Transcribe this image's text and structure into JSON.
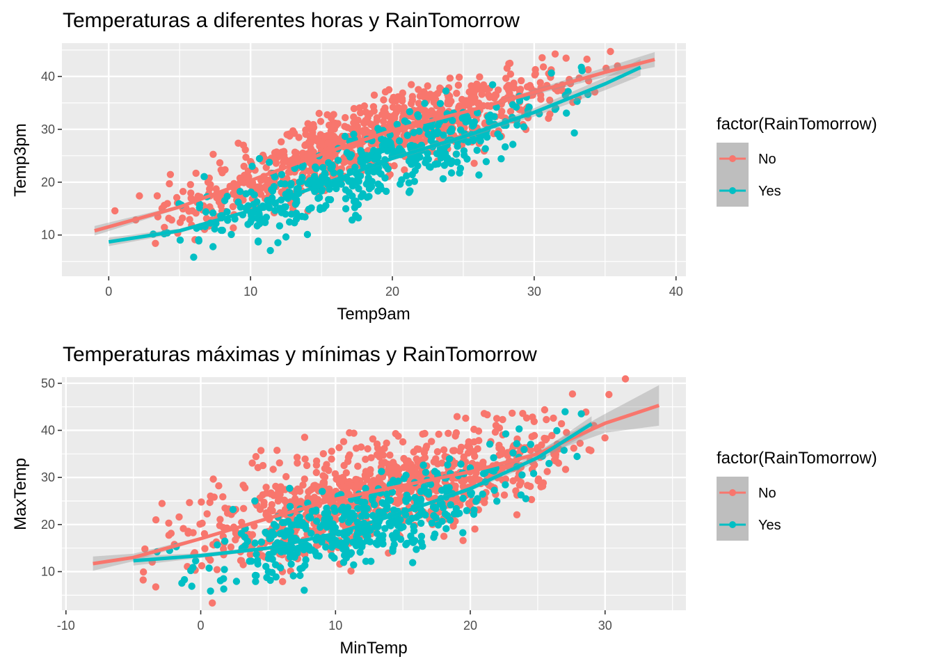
{
  "chart_data": [
    {
      "type": "scatter",
      "title": "Temperaturas a diferentes horas y RainTomorrow",
      "xlabel": "Temp9am",
      "ylabel": "Temp3pm",
      "xlim": [
        -3.3,
        40.7
      ],
      "ylim": [
        2.2,
        46.3
      ],
      "xticks": [
        0,
        10,
        20,
        30,
        40
      ],
      "yticks": [
        10,
        20,
        30,
        40
      ],
      "xtick_labels": [
        "0",
        "10",
        "20",
        "30",
        "40"
      ],
      "ytick_labels": [
        "10",
        "20",
        "30",
        "40"
      ],
      "grid": true,
      "legend": {
        "title": "factor(RainTomorrow)",
        "placement": "right",
        "entries": [
          {
            "label": "No",
            "color": "#F8766D"
          },
          {
            "label": "Yes",
            "color": "#00BFC4"
          }
        ]
      },
      "series": [
        {
          "name": "No",
          "color": "#F8766D",
          "points_spec": {
            "x_range": [
              -1.2,
              38.6
            ],
            "slope": 1.02,
            "intercept": 10.5,
            "spread": 3.3,
            "count": 900
          },
          "smooth": {
            "x": [
              -1,
              5,
              10,
              15,
              20,
              25,
              30,
              35,
              38.5
            ],
            "y": [
              10.8,
              15.3,
              20.3,
              25.3,
              29.8,
              33.2,
              37.0,
              40.8,
              43.2
            ],
            "se": [
              0.9,
              0.3,
              0.2,
              0.2,
              0.2,
              0.3,
              0.5,
              0.9,
              1.4
            ]
          }
        },
        {
          "name": "Yes",
          "color": "#00BFC4",
          "points_spec": {
            "x_range": [
              -0.5,
              37.5
            ],
            "slope": 0.9,
            "intercept": 8.0,
            "spread": 3.5,
            "count": 450
          },
          "smooth": {
            "x": [
              0,
              5,
              10,
              15,
              20,
              25,
              30,
              35,
              37.5
            ],
            "y": [
              8.7,
              10.8,
              14.6,
              19.5,
              24.5,
              28.6,
              33.2,
              38.6,
              41.7
            ],
            "se": [
              0.8,
              0.4,
              0.3,
              0.3,
              0.4,
              0.5,
              0.8,
              1.2,
              1.6
            ]
          }
        }
      ]
    },
    {
      "type": "scatter",
      "title": "Temperaturas máximas y mínimas y RainTomorrow",
      "xlabel": "MinTemp",
      "ylabel": "MaxTemp",
      "xlim": [
        -10.3,
        36.0
      ],
      "ylim": [
        1.8,
        51.3
      ],
      "xticks": [
        -10,
        0,
        10,
        20,
        30
      ],
      "yticks": [
        10,
        20,
        30,
        40,
        50
      ],
      "xtick_labels": [
        "-10",
        "0",
        "10",
        "20",
        "30"
      ],
      "ytick_labels": [
        "10",
        "20",
        "30",
        "40",
        "50"
      ],
      "grid": true,
      "legend": {
        "title": "factor(RainTomorrow)",
        "placement": "right",
        "entries": [
          {
            "label": "No",
            "color": "#F8766D"
          },
          {
            "label": "Yes",
            "color": "#00BFC4"
          }
        ]
      },
      "series": [
        {
          "name": "No",
          "color": "#F8766D",
          "points_spec": {
            "x_range": [
              -8.0,
              34.0
            ],
            "slope": 0.82,
            "intercept": 18.0,
            "spread": 5.2,
            "count": 900
          },
          "smooth": {
            "x": [
              -8,
              -5,
              0,
              5,
              10,
              15,
              20,
              25,
              30,
              34
            ],
            "y": [
              11.7,
              13.0,
              17.0,
              21.3,
              25.4,
              28.3,
              31.2,
              35.0,
              41.5,
              45.3
            ],
            "se": [
              1.5,
              0.8,
              0.3,
              0.2,
              0.2,
              0.2,
              0.3,
              0.6,
              2.0,
              4.3
            ]
          }
        },
        {
          "name": "Yes",
          "color": "#00BFC4",
          "points_spec": {
            "x_range": [
              -5.0,
              30.0
            ],
            "slope": 0.82,
            "intercept": 11.5,
            "spread": 4.3,
            "count": 450
          },
          "smooth": {
            "x": [
              -5,
              0,
              5,
              10,
              15,
              20,
              25,
              29
            ],
            "y": [
              12.3,
              13.4,
              15.0,
              18.1,
              22.6,
              27.6,
              34.2,
              41.4
            ],
            "se": [
              1.0,
              0.5,
              0.4,
              0.4,
              0.4,
              0.5,
              0.9,
              1.6
            ]
          }
        }
      ]
    }
  ]
}
